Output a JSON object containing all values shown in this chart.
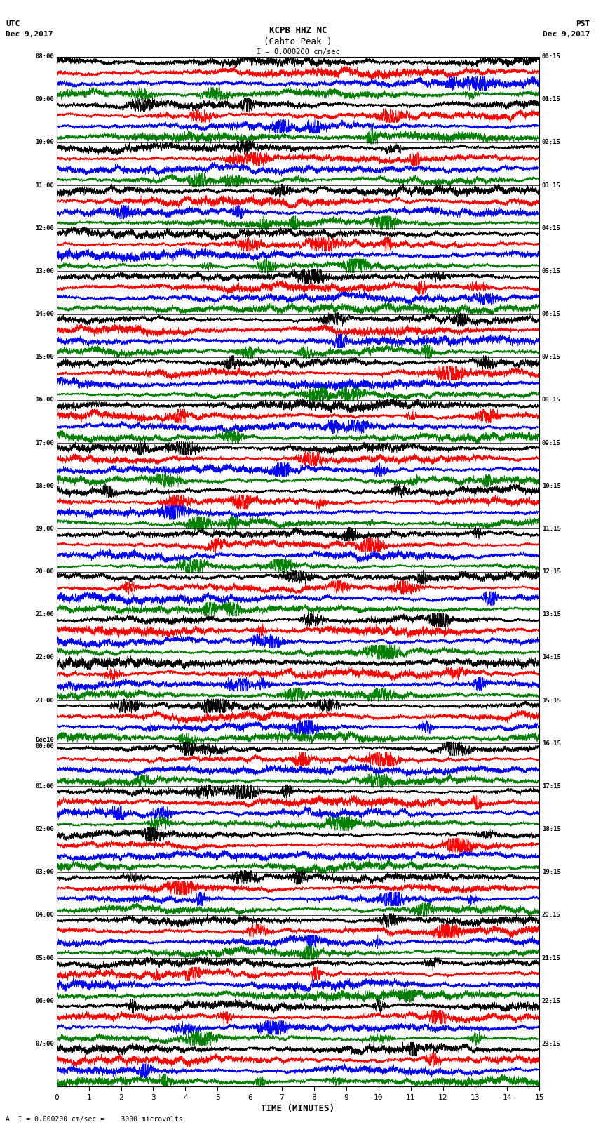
{
  "title_line1": "KCPB HHZ NC",
  "title_line2": "(Cahto Peak )",
  "scale_label": "I = 0.000200 cm/sec",
  "bottom_label": "A  I = 0.000200 cm/sec =    3000 microvolts",
  "xlabel": "TIME (MINUTES)",
  "utc_label": "UTC",
  "utc_date": "Dec 9,2017",
  "pst_label": "PST",
  "pst_date": "Dec 9,2017",
  "left_times_utc": [
    "08:00",
    "09:00",
    "10:00",
    "11:00",
    "12:00",
    "13:00",
    "14:00",
    "15:00",
    "16:00",
    "17:00",
    "18:00",
    "19:00",
    "20:00",
    "21:00",
    "22:00",
    "23:00",
    "Dec10\n00:00",
    "01:00",
    "02:00",
    "03:00",
    "04:00",
    "05:00",
    "06:00",
    "07:00"
  ],
  "right_times_pst": [
    "00:15",
    "01:15",
    "02:15",
    "03:15",
    "04:15",
    "05:15",
    "06:15",
    "07:15",
    "08:15",
    "09:15",
    "10:15",
    "11:15",
    "12:15",
    "13:15",
    "14:15",
    "15:15",
    "16:15",
    "17:15",
    "18:15",
    "19:15",
    "20:15",
    "21:15",
    "22:15",
    "23:15"
  ],
  "n_rows": 24,
  "traces_per_row": 4,
  "colors": [
    "black",
    "red",
    "blue",
    "green"
  ],
  "bg_color": "white",
  "fig_width": 8.5,
  "fig_height": 16.13,
  "x_min": 0,
  "x_max": 15,
  "x_ticks": [
    0,
    1,
    2,
    3,
    4,
    5,
    6,
    7,
    8,
    9,
    10,
    11,
    12,
    13,
    14,
    15
  ]
}
